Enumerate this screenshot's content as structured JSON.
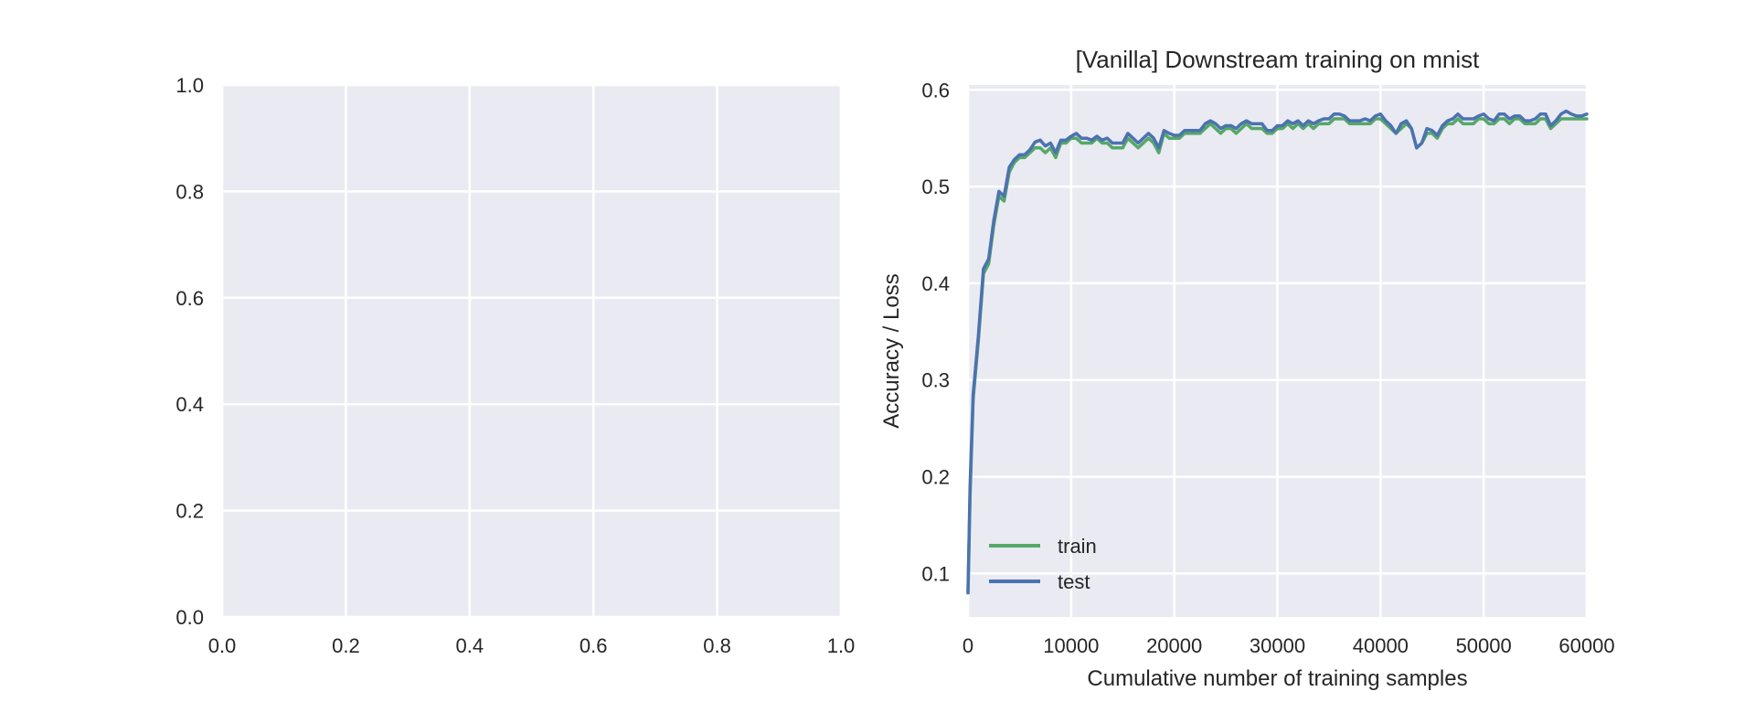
{
  "chart_data": [
    {
      "type": "empty",
      "title": "",
      "xlabel": "",
      "ylabel": "",
      "xlim": [
        0.0,
        1.0
      ],
      "ylim": [
        0.0,
        1.0
      ],
      "xticks": [
        "0.0",
        "0.2",
        "0.4",
        "0.6",
        "0.8",
        "1.0"
      ],
      "yticks": [
        "0.0",
        "0.2",
        "0.4",
        "0.6",
        "0.8",
        "1.0"
      ],
      "grid": true,
      "series": []
    },
    {
      "type": "line",
      "title": "[Vanilla] Downstream training on mnist",
      "xlabel": "Cumulative number of training samples",
      "ylabel": "Accuracy / Loss",
      "xlim": [
        0,
        60000
      ],
      "ylim": [
        0.055,
        0.605
      ],
      "xticks": [
        "0",
        "10000",
        "20000",
        "30000",
        "40000",
        "50000",
        "60000"
      ],
      "yticks": [
        "0.1",
        "0.2",
        "0.3",
        "0.4",
        "0.5",
        "0.6"
      ],
      "grid": true,
      "legend": "lower-left",
      "x": [
        0,
        200,
        500,
        1000,
        1500,
        2000,
        2500,
        3000,
        3500,
        4000,
        4500,
        5000,
        5500,
        6000,
        6500,
        7000,
        7500,
        8000,
        8500,
        9000,
        9500,
        10000,
        10500,
        11000,
        11500,
        12000,
        12500,
        13000,
        13500,
        14000,
        14500,
        15000,
        15500,
        16000,
        16500,
        17000,
        17500,
        18000,
        18500,
        19000,
        19500,
        20000,
        20500,
        21000,
        21500,
        22000,
        22500,
        23000,
        23500,
        24000,
        24500,
        25000,
        25500,
        26000,
        26500,
        27000,
        27500,
        28000,
        28500,
        29000,
        29500,
        30000,
        30500,
        31000,
        31500,
        32000,
        32500,
        33000,
        33500,
        34000,
        34500,
        35000,
        35500,
        36000,
        36500,
        37000,
        37500,
        38000,
        38500,
        39000,
        39500,
        40000,
        40500,
        41000,
        41500,
        42000,
        42500,
        43000,
        43500,
        44000,
        44500,
        45000,
        45500,
        46000,
        46500,
        47000,
        47500,
        48000,
        48500,
        49000,
        49500,
        50000,
        50500,
        51000,
        51500,
        52000,
        52500,
        53000,
        53500,
        54000,
        54500,
        55000,
        55500,
        56000,
        56500,
        57000,
        57500,
        58000,
        58500,
        59000,
        59500,
        60000
      ],
      "series": [
        {
          "name": "train",
          "color": "#55a868",
          "values": [
            0.08,
            0.18,
            0.28,
            0.34,
            0.41,
            0.42,
            0.46,
            0.49,
            0.485,
            0.515,
            0.525,
            0.53,
            0.53,
            0.535,
            0.54,
            0.54,
            0.535,
            0.54,
            0.53,
            0.545,
            0.545,
            0.55,
            0.55,
            0.545,
            0.545,
            0.545,
            0.55,
            0.545,
            0.545,
            0.54,
            0.54,
            0.54,
            0.55,
            0.545,
            0.54,
            0.545,
            0.55,
            0.545,
            0.535,
            0.555,
            0.55,
            0.55,
            0.55,
            0.555,
            0.555,
            0.555,
            0.555,
            0.56,
            0.565,
            0.56,
            0.555,
            0.56,
            0.56,
            0.555,
            0.56,
            0.565,
            0.56,
            0.56,
            0.56,
            0.555,
            0.555,
            0.56,
            0.56,
            0.565,
            0.56,
            0.565,
            0.56,
            0.565,
            0.56,
            0.565,
            0.565,
            0.565,
            0.57,
            0.57,
            0.57,
            0.565,
            0.565,
            0.565,
            0.565,
            0.565,
            0.57,
            0.57,
            0.565,
            0.56,
            0.555,
            0.56,
            0.565,
            0.56,
            0.54,
            0.545,
            0.555,
            0.555,
            0.55,
            0.56,
            0.565,
            0.565,
            0.57,
            0.565,
            0.565,
            0.565,
            0.57,
            0.57,
            0.565,
            0.565,
            0.57,
            0.57,
            0.565,
            0.57,
            0.57,
            0.565,
            0.565,
            0.565,
            0.57,
            0.57,
            0.56,
            0.565,
            0.57,
            0.57,
            0.57,
            0.57,
            0.57,
            0.57
          ]
        },
        {
          "name": "test",
          "color": "#4c72b0",
          "values": [
            0.08,
            0.19,
            0.285,
            0.345,
            0.415,
            0.425,
            0.465,
            0.495,
            0.49,
            0.52,
            0.528,
            0.533,
            0.533,
            0.538,
            0.546,
            0.548,
            0.542,
            0.545,
            0.535,
            0.548,
            0.548,
            0.552,
            0.555,
            0.55,
            0.55,
            0.548,
            0.552,
            0.548,
            0.55,
            0.545,
            0.545,
            0.545,
            0.555,
            0.55,
            0.545,
            0.55,
            0.555,
            0.55,
            0.54,
            0.558,
            0.555,
            0.553,
            0.553,
            0.558,
            0.558,
            0.558,
            0.558,
            0.565,
            0.568,
            0.565,
            0.56,
            0.563,
            0.563,
            0.56,
            0.565,
            0.568,
            0.565,
            0.565,
            0.565,
            0.558,
            0.558,
            0.563,
            0.563,
            0.568,
            0.565,
            0.568,
            0.563,
            0.568,
            0.565,
            0.568,
            0.57,
            0.57,
            0.575,
            0.575,
            0.573,
            0.568,
            0.568,
            0.568,
            0.57,
            0.568,
            0.573,
            0.575,
            0.568,
            0.563,
            0.555,
            0.565,
            0.568,
            0.56,
            0.54,
            0.545,
            0.56,
            0.558,
            0.553,
            0.563,
            0.568,
            0.57,
            0.575,
            0.57,
            0.57,
            0.57,
            0.573,
            0.575,
            0.57,
            0.568,
            0.575,
            0.575,
            0.57,
            0.573,
            0.573,
            0.568,
            0.568,
            0.57,
            0.575,
            0.575,
            0.563,
            0.568,
            0.575,
            0.578,
            0.575,
            0.573,
            0.573,
            0.575
          ]
        }
      ]
    }
  ]
}
